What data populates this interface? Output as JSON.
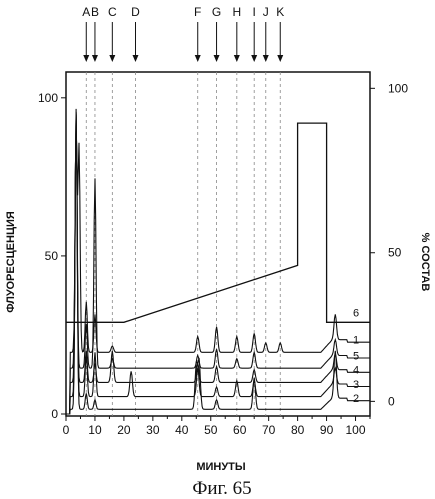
{
  "figure": {
    "caption": "Фиг. 65"
  },
  "chart_data": {
    "type": "line",
    "xlabel": "МИНУТЫ",
    "ylabel": "ФЛУОРЕСЦЕНЦИЯ",
    "y2label": "% СОСТАВ",
    "xlim": [
      0,
      105
    ],
    "ylim": [
      0,
      105
    ],
    "y2lim": [
      -4.2,
      105.5
    ],
    "x_ticks": [
      "0",
      "10",
      "20",
      "30",
      "40",
      "50",
      "60",
      "70",
      "80",
      "90",
      "100"
    ],
    "x_tick_values": [
      0,
      10,
      20,
      30,
      40,
      50,
      60,
      70,
      80,
      90,
      100
    ],
    "y_ticks": [
      "0",
      "50",
      "100"
    ],
    "y_tick_values": [
      0,
      50,
      100
    ],
    "y2_ticks": [
      "0",
      "50",
      "100"
    ],
    "y2_tick_values": [
      0,
      50,
      100
    ],
    "grid": false,
    "peak_markers": [
      {
        "label": "A",
        "x": 7
      },
      {
        "label": "B",
        "x": 10
      },
      {
        "label": "C",
        "x": 16
      },
      {
        "label": "D",
        "x": 24
      },
      {
        "label": "F",
        "x": 45.5
      },
      {
        "label": "G",
        "x": 52
      },
      {
        "label": "H",
        "x": 59
      },
      {
        "label": "I",
        "x": 65
      },
      {
        "label": "J",
        "x": 69
      },
      {
        "label": "K",
        "x": 74
      }
    ],
    "series": [
      {
        "name": "1",
        "baseline": 19.5,
        "end_level": 23.5,
        "peaks": [
          [
            3.5,
            70
          ],
          [
            4.5,
            65
          ],
          [
            7,
            16
          ],
          [
            10,
            12
          ],
          [
            16,
            2
          ],
          [
            45.5,
            5
          ],
          [
            52,
            8
          ],
          [
            59,
            5
          ],
          [
            65,
            6
          ],
          [
            69,
            3
          ],
          [
            74,
            3
          ],
          [
            93,
            8
          ]
        ]
      },
      {
        "name": "5",
        "baseline": 14.5,
        "end_level": 18.5,
        "peaks": [
          [
            3.5,
            80
          ],
          [
            7,
            14
          ],
          [
            10,
            60
          ],
          [
            16,
            3
          ],
          [
            45.5,
            4
          ],
          [
            52,
            6
          ],
          [
            59,
            3
          ],
          [
            65,
            5
          ],
          [
            93,
            5
          ]
        ]
      },
      {
        "name": "4",
        "baseline": 10,
        "end_level": 14,
        "peaks": [
          [
            3.5,
            85
          ],
          [
            7,
            10
          ],
          [
            10,
            6
          ],
          [
            16,
            10
          ],
          [
            45.5,
            6
          ],
          [
            52,
            5
          ],
          [
            65,
            4
          ],
          [
            93,
            5
          ]
        ]
      },
      {
        "name": "3",
        "baseline": 5.5,
        "end_level": 9.5,
        "peaks": [
          [
            3.5,
            90
          ],
          [
            7,
            13
          ],
          [
            10,
            14
          ],
          [
            22.5,
            8
          ],
          [
            45.5,
            9
          ],
          [
            52,
            3
          ],
          [
            59,
            5
          ],
          [
            65,
            5
          ],
          [
            93,
            5
          ]
        ]
      },
      {
        "name": "2",
        "baseline": 1.5,
        "end_level": 5,
        "peaks": [
          [
            3.5,
            95
          ],
          [
            7,
            5
          ],
          [
            10,
            3
          ],
          [
            45,
            14
          ],
          [
            46,
            15
          ],
          [
            52,
            3
          ],
          [
            65,
            10
          ],
          [
            93,
            15
          ]
        ]
      }
    ],
    "gradient": {
      "name": "6",
      "points": [
        [
          0,
          29
        ],
        [
          20,
          29
        ],
        [
          80,
          47
        ],
        [
          80,
          92
        ],
        [
          90,
          92
        ],
        [
          90,
          29
        ],
        [
          105,
          29
        ]
      ]
    },
    "peak_widths": {
      "F": [
        [
          45.5,
          48
        ]
      ],
      "G": [
        [
          52,
          22
        ]
      ],
      "H": [
        [
          59,
          12
        ]
      ],
      "I": [
        [
          65,
          10
        ]
      ],
      "J": [
        [
          69,
          5
        ]
      ],
      "K": [
        [
          74,
          3
        ]
      ]
    },
    "colors": {
      "ink": "#111111",
      "dashed": "#888888"
    }
  }
}
